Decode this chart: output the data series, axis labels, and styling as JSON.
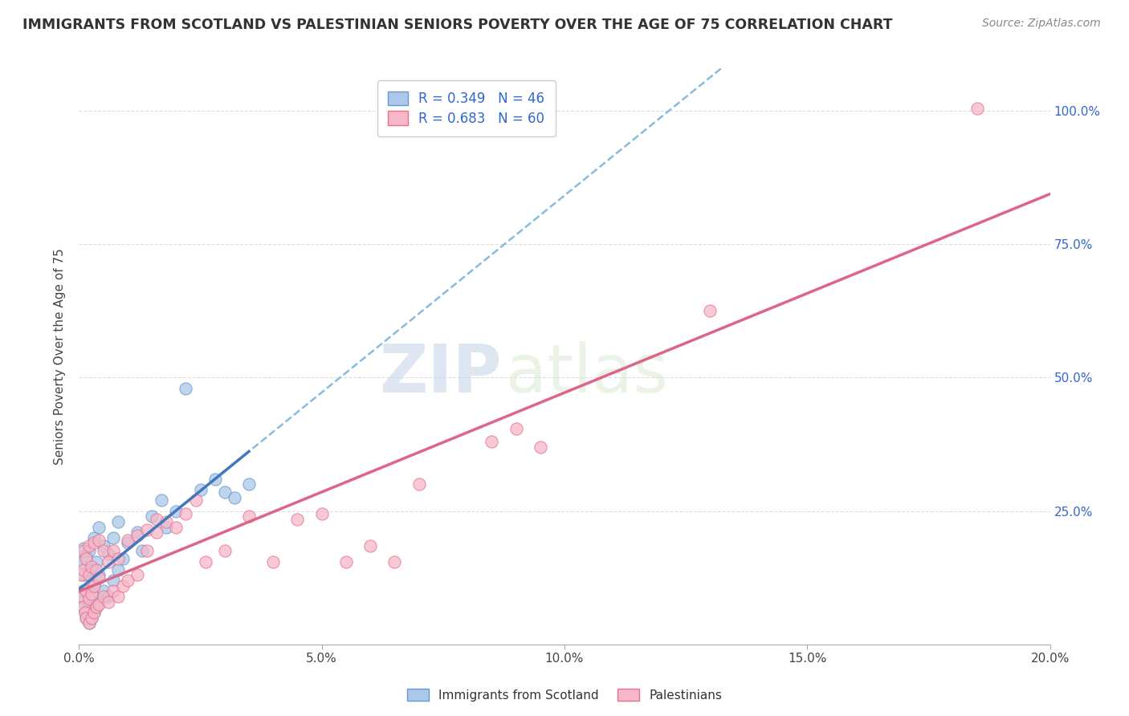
{
  "title": "IMMIGRANTS FROM SCOTLAND VS PALESTINIAN SENIORS POVERTY OVER THE AGE OF 75 CORRELATION CHART",
  "source_text": "Source: ZipAtlas.com",
  "ylabel": "Seniors Poverty Over the Age of 75",
  "xlim": [
    0.0,
    0.2
  ],
  "ylim": [
    0.0,
    1.08
  ],
  "xtick_labels": [
    "0.0%",
    "5.0%",
    "10.0%",
    "15.0%",
    "20.0%"
  ],
  "xtick_vals": [
    0.0,
    0.05,
    0.1,
    0.15,
    0.2
  ],
  "ytick_labels": [
    "25.0%",
    "50.0%",
    "75.0%",
    "100.0%"
  ],
  "ytick_vals": [
    0.25,
    0.5,
    0.75,
    1.0
  ],
  "scotland_color": "#aac8e8",
  "scotland_edge": "#6699cc",
  "palestinian_color": "#f5b8c8",
  "palestinian_edge": "#e87090",
  "legend_scotland_label": "R = 0.349   N = 46",
  "legend_palestinian_label": "R = 0.683   N = 60",
  "watermark_zip": "ZIP",
  "watermark_atlas": "atlas",
  "background_color": "#ffffff",
  "grid_color": "#dddddd",
  "title_color": "#333333",
  "legend_text_color": "#3366cc",
  "scotland_points": [
    [
      0.0005,
      0.155
    ],
    [
      0.0008,
      0.1
    ],
    [
      0.001,
      0.08
    ],
    [
      0.001,
      0.13
    ],
    [
      0.001,
      0.18
    ],
    [
      0.0012,
      0.06
    ],
    [
      0.0015,
      0.05
    ],
    [
      0.0015,
      0.1
    ],
    [
      0.0015,
      0.165
    ],
    [
      0.002,
      0.04
    ],
    [
      0.002,
      0.08
    ],
    [
      0.002,
      0.13
    ],
    [
      0.002,
      0.175
    ],
    [
      0.0025,
      0.05
    ],
    [
      0.0025,
      0.09
    ],
    [
      0.0025,
      0.14
    ],
    [
      0.003,
      0.06
    ],
    [
      0.003,
      0.11
    ],
    [
      0.003,
      0.2
    ],
    [
      0.0035,
      0.07
    ],
    [
      0.0035,
      0.155
    ],
    [
      0.004,
      0.08
    ],
    [
      0.004,
      0.13
    ],
    [
      0.004,
      0.22
    ],
    [
      0.005,
      0.1
    ],
    [
      0.005,
      0.185
    ],
    [
      0.006,
      0.09
    ],
    [
      0.006,
      0.17
    ],
    [
      0.007,
      0.12
    ],
    [
      0.007,
      0.2
    ],
    [
      0.008,
      0.14
    ],
    [
      0.008,
      0.23
    ],
    [
      0.009,
      0.16
    ],
    [
      0.01,
      0.19
    ],
    [
      0.012,
      0.21
    ],
    [
      0.013,
      0.175
    ],
    [
      0.015,
      0.24
    ],
    [
      0.017,
      0.27
    ],
    [
      0.018,
      0.22
    ],
    [
      0.02,
      0.25
    ],
    [
      0.022,
      0.48
    ],
    [
      0.025,
      0.29
    ],
    [
      0.028,
      0.31
    ],
    [
      0.03,
      0.285
    ],
    [
      0.032,
      0.275
    ],
    [
      0.035,
      0.3
    ]
  ],
  "palestinian_points": [
    [
      0.0005,
      0.13
    ],
    [
      0.0008,
      0.09
    ],
    [
      0.001,
      0.07
    ],
    [
      0.001,
      0.14
    ],
    [
      0.001,
      0.175
    ],
    [
      0.0012,
      0.06
    ],
    [
      0.0015,
      0.05
    ],
    [
      0.0015,
      0.1
    ],
    [
      0.0015,
      0.16
    ],
    [
      0.002,
      0.04
    ],
    [
      0.002,
      0.085
    ],
    [
      0.002,
      0.13
    ],
    [
      0.002,
      0.185
    ],
    [
      0.0025,
      0.05
    ],
    [
      0.0025,
      0.095
    ],
    [
      0.0025,
      0.145
    ],
    [
      0.003,
      0.06
    ],
    [
      0.003,
      0.11
    ],
    [
      0.003,
      0.19
    ],
    [
      0.0035,
      0.07
    ],
    [
      0.0035,
      0.14
    ],
    [
      0.004,
      0.075
    ],
    [
      0.004,
      0.125
    ],
    [
      0.004,
      0.195
    ],
    [
      0.005,
      0.09
    ],
    [
      0.005,
      0.175
    ],
    [
      0.006,
      0.08
    ],
    [
      0.006,
      0.155
    ],
    [
      0.007,
      0.1
    ],
    [
      0.007,
      0.175
    ],
    [
      0.008,
      0.09
    ],
    [
      0.008,
      0.16
    ],
    [
      0.009,
      0.11
    ],
    [
      0.01,
      0.12
    ],
    [
      0.01,
      0.195
    ],
    [
      0.012,
      0.13
    ],
    [
      0.012,
      0.205
    ],
    [
      0.014,
      0.215
    ],
    [
      0.014,
      0.175
    ],
    [
      0.016,
      0.21
    ],
    [
      0.016,
      0.235
    ],
    [
      0.018,
      0.23
    ],
    [
      0.02,
      0.22
    ],
    [
      0.022,
      0.245
    ],
    [
      0.024,
      0.27
    ],
    [
      0.026,
      0.155
    ],
    [
      0.03,
      0.175
    ],
    [
      0.035,
      0.24
    ],
    [
      0.04,
      0.155
    ],
    [
      0.045,
      0.235
    ],
    [
      0.05,
      0.245
    ],
    [
      0.055,
      0.155
    ],
    [
      0.06,
      0.185
    ],
    [
      0.065,
      0.155
    ],
    [
      0.07,
      0.3
    ],
    [
      0.085,
      0.38
    ],
    [
      0.09,
      0.405
    ],
    [
      0.095,
      0.37
    ],
    [
      0.13,
      0.625
    ],
    [
      0.185,
      1.005
    ]
  ]
}
